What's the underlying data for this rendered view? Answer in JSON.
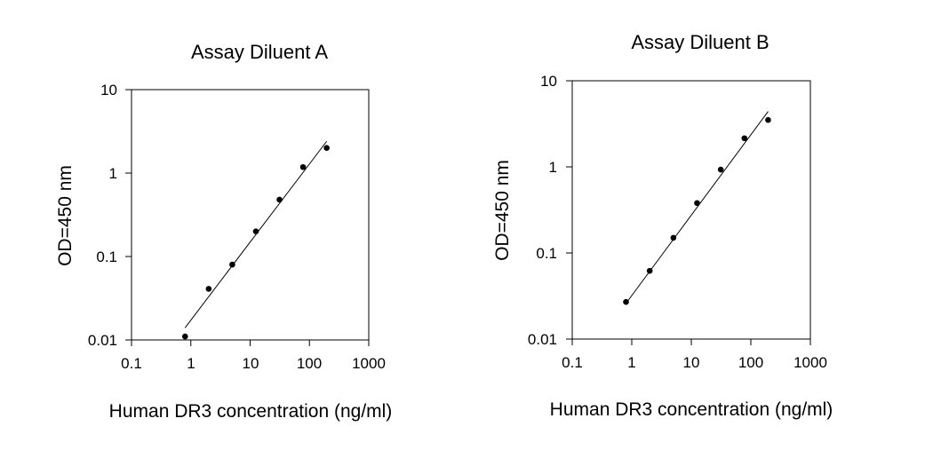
{
  "chart_data": [
    {
      "type": "scatter",
      "title": "Assay Diluent A",
      "xlabel": "Human DR3 concentration (ng/ml)",
      "ylabel": "OD=450 nm",
      "xscale": "log",
      "yscale": "log",
      "xlim": [
        0.1,
        1000
      ],
      "ylim": [
        0.01,
        10
      ],
      "xticks": [
        "0.1",
        "1",
        "10",
        "100",
        "1000"
      ],
      "yticks": [
        "0.01",
        "0.1",
        "1",
        "10"
      ],
      "grid": false,
      "legend": "none",
      "series": [
        {
          "x": [
            0.8,
            2,
            5,
            12.5,
            31.25,
            78,
            195
          ],
          "y": [
            0.011,
            0.041,
            0.08,
            0.2,
            0.48,
            1.18,
            2.0
          ]
        }
      ],
      "fit_line": {
        "x": [
          0.8,
          195
        ],
        "y": [
          0.014,
          2.4
        ]
      }
    },
    {
      "type": "scatter",
      "title": "Assay Diluent B",
      "xlabel": "Human DR3 concentration (ng/ml)",
      "ylabel": "OD=450 nm",
      "xscale": "log",
      "yscale": "log",
      "xlim": [
        0.1,
        1000
      ],
      "ylim": [
        0.01,
        10
      ],
      "xticks": [
        "0.1",
        "1",
        "10",
        "100",
        "1000"
      ],
      "yticks": [
        "0.01",
        "0.1",
        "1",
        "10"
      ],
      "grid": false,
      "legend": "none",
      "series": [
        {
          "x": [
            0.8,
            2,
            5,
            12.5,
            31.25,
            78,
            195
          ],
          "y": [
            0.027,
            0.062,
            0.15,
            0.38,
            0.93,
            2.15,
            3.5
          ]
        }
      ],
      "fit_line": {
        "x": [
          0.8,
          195
        ],
        "y": [
          0.026,
          4.4
        ]
      }
    }
  ]
}
